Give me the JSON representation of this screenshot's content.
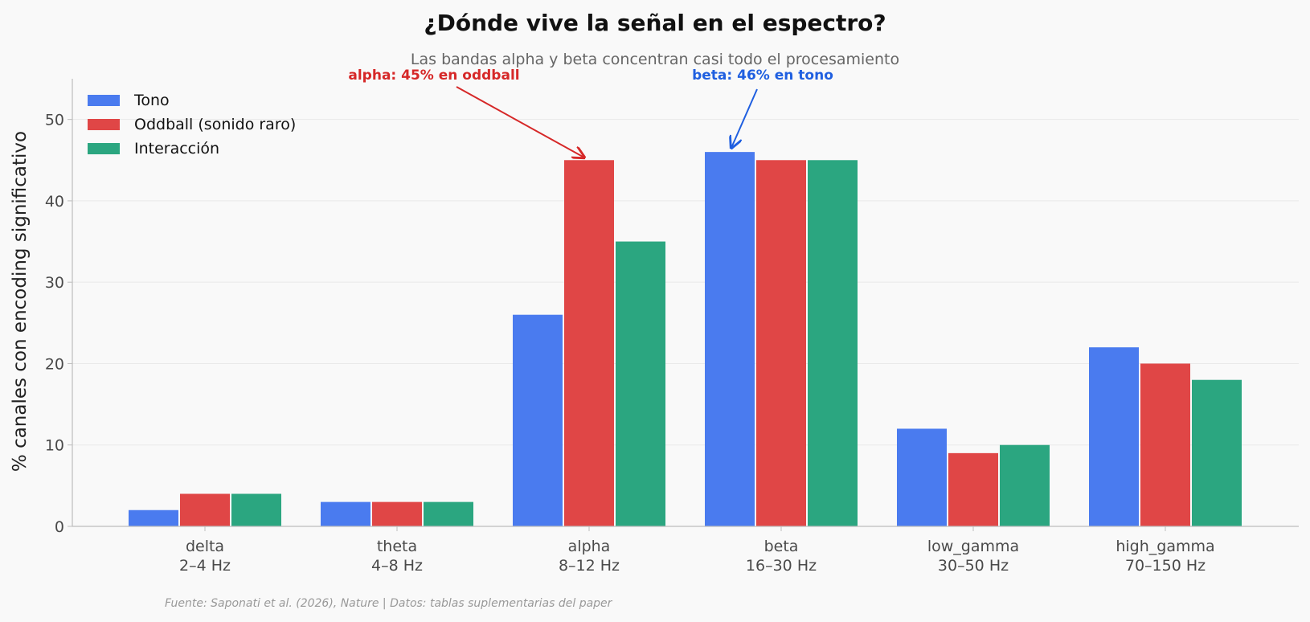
{
  "chart_data": {
    "type": "bar",
    "title": "¿Dónde vive la señal en el espectro?",
    "subtitle": "Las bandas alpha y beta concentran casi todo el procesamiento",
    "xlabel": "",
    "ylabel": "% canales con encoding significativo",
    "ylim": [
      0,
      55
    ],
    "yticks": [
      0,
      10,
      20,
      30,
      40,
      50
    ],
    "grid": "horizontal",
    "legend_position": "top-left",
    "categories": [
      [
        "delta",
        "2–4 Hz"
      ],
      [
        "theta",
        "4–8 Hz"
      ],
      [
        "alpha",
        "8–12 Hz"
      ],
      [
        "beta",
        "16–30 Hz"
      ],
      [
        "low_gamma",
        "30–50 Hz"
      ],
      [
        "high_gamma",
        "70–150 Hz"
      ]
    ],
    "series": [
      {
        "name": "Tono",
        "color": "#4a7bef",
        "values": [
          2,
          3,
          26,
          46,
          12,
          22
        ]
      },
      {
        "name": "Oddball (sonido raro)",
        "color": "#e04646",
        "values": [
          4,
          3,
          45,
          45,
          9,
          20
        ]
      },
      {
        "name": "Interacción",
        "color": "#2ba680",
        "values": [
          4,
          3,
          35,
          45,
          10,
          18
        ]
      }
    ],
    "annotations": [
      {
        "text": "alpha: 45% en oddball",
        "color": "#d62828",
        "category_index": 2,
        "series_index": 1,
        "value": 45
      },
      {
        "text": "beta: 46% en tono",
        "color": "#1f5fe0",
        "category_index": 3,
        "series_index": 0,
        "value": 46
      }
    ],
    "source": "Fuente: Saponati et al. (2026), Nature | Datos: tablas suplementarias del paper"
  }
}
